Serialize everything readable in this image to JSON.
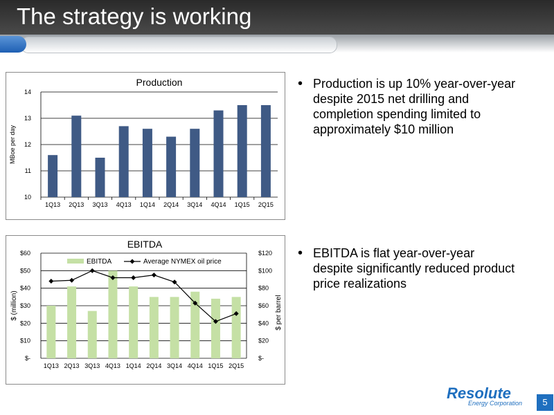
{
  "slide": {
    "title": "The strategy is working",
    "page_number": "5"
  },
  "bullets": [
    {
      "text_lines": [
        "Production is up 10% year-over-year",
        "despite 2015 net drilling and",
        "completion spending limited to",
        "approximately $10 million"
      ]
    },
    {
      "text_lines": [
        "EBITDA is flat year-over-year",
        "despite significantly reduced product",
        "price realizations"
      ]
    }
  ],
  "logo": {
    "name": "Resolute",
    "subtitle": "Energy Corporation"
  },
  "colors": {
    "production_bar": "#3f5a85",
    "ebitda_bar": "#c5e0a5",
    "line": "#000000",
    "header": "#3a3a3a",
    "logo": "#1f6fbf"
  },
  "chart_data": [
    {
      "type": "bar",
      "title": "Production",
      "ylabel": "MBoe per day",
      "categories": [
        "1Q13",
        "2Q13",
        "3Q13",
        "4Q13",
        "1Q14",
        "2Q14",
        "3Q14",
        "4Q14",
        "1Q15",
        "2Q15"
      ],
      "values": [
        11.6,
        13.1,
        11.5,
        12.7,
        12.6,
        12.3,
        12.6,
        13.3,
        13.5,
        13.5
      ],
      "ylim": [
        10,
        14
      ],
      "yticks": [
        "10",
        "11",
        "12",
        "13",
        "14"
      ],
      "grid": true
    },
    {
      "type": "bar",
      "title": "EBITDA",
      "ylabel": "$ (million)",
      "y2label": "$ per barrel",
      "categories": [
        "1Q13",
        "2Q13",
        "3Q13",
        "4Q13",
        "1Q14",
        "2Q14",
        "3Q14",
        "4Q14",
        "1Q15",
        "2Q15"
      ],
      "series": [
        {
          "name": "EBITDA",
          "type": "bar",
          "values": [
            30,
            41,
            27,
            50,
            41,
            35,
            35,
            38,
            34,
            35
          ]
        },
        {
          "name": "Average NYMEX oil price",
          "type": "line",
          "axis": "right",
          "values": [
            88,
            89,
            100,
            92,
            92,
            95,
            87,
            63,
            42,
            51
          ]
        }
      ],
      "ylim": [
        0,
        60
      ],
      "y2lim": [
        0,
        120
      ],
      "yticks": [
        "$-",
        "$10",
        "$20",
        "$30",
        "$40",
        "$50",
        "$60"
      ],
      "y2ticks": [
        "$-",
        "$20",
        "$40",
        "$60",
        "$80",
        "$100",
        "$120"
      ],
      "legend": "top-center",
      "grid": true
    }
  ]
}
